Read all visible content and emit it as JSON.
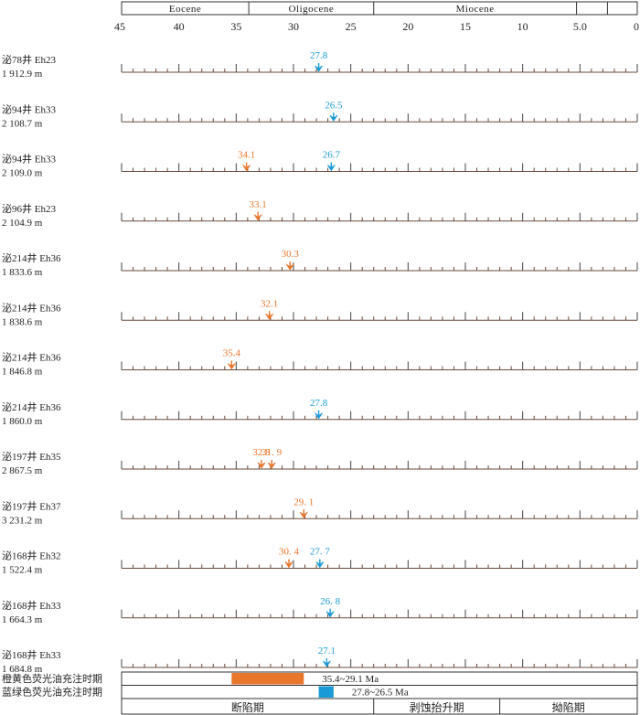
{
  "epochs": [
    {
      "name": "Eocene",
      "from": 45,
      "to": 33.9
    },
    {
      "name": "Oligocene",
      "from": 33.9,
      "to": 23.0
    },
    {
      "name": "Miocene",
      "from": 23.0,
      "to": 5.3
    },
    {
      "name": "",
      "from": 5.3,
      "to": 2.6
    },
    {
      "name": "",
      "from": 2.6,
      "to": 0
    }
  ],
  "axis": {
    "min": 0,
    "max": 45,
    "reversed": true,
    "ticks": [
      {
        "value": 45,
        "label": "45"
      },
      {
        "value": 40,
        "label": "40"
      },
      {
        "value": 35,
        "label": "35"
      },
      {
        "value": 30,
        "label": "30"
      },
      {
        "value": 25,
        "label": "25"
      },
      {
        "value": 20,
        "label": "20"
      },
      {
        "value": 15,
        "label": "15"
      },
      {
        "value": 10,
        "label": "10"
      },
      {
        "value": 5,
        "label": "5.0"
      },
      {
        "value": 0,
        "label": "0"
      }
    ]
  },
  "colors": {
    "orange": "#e8762b",
    "blue": "#1a9ad6",
    "line": "#6b4a3a",
    "frame": "#333333"
  },
  "samples": [
    {
      "well": "泌78井",
      "layer": "Eh23",
      "depth": "1 912.9 m",
      "markers": [
        {
          "age": 27.8,
          "label": "27.8",
          "color": "blue"
        }
      ]
    },
    {
      "well": "泌94井",
      "layer": "Eh33",
      "depth": "2 108.7 m",
      "markers": [
        {
          "age": 26.5,
          "label": "26.5",
          "color": "blue"
        }
      ]
    },
    {
      "well": "泌94井",
      "layer": "Eh33",
      "depth": "2 109.0 m",
      "markers": [
        {
          "age": 34.1,
          "label": "34.1",
          "color": "orange"
        },
        {
          "age": 26.7,
          "label": "26.7",
          "color": "blue"
        }
      ]
    },
    {
      "well": "泌96井",
      "layer": "Eh23",
      "depth": "2 104.9 m",
      "markers": [
        {
          "age": 33.1,
          "label": "33.1",
          "color": "orange"
        }
      ]
    },
    {
      "well": "泌214井",
      "layer": "Eh36",
      "depth": "1 833.6 m",
      "markers": [
        {
          "age": 30.3,
          "label": "30.3",
          "color": "orange"
        }
      ]
    },
    {
      "well": "泌214井",
      "layer": "Eh36",
      "depth": "1 838.6 m",
      "markers": [
        {
          "age": 32.1,
          "label": "32.1",
          "color": "orange"
        }
      ]
    },
    {
      "well": "泌214井",
      "layer": "Eh36",
      "depth": "1 846.8 m",
      "markers": [
        {
          "age": 35.4,
          "label": "35.4",
          "color": "orange"
        }
      ]
    },
    {
      "well": "泌214井",
      "layer": "Eh36",
      "depth": "1 860.0 m",
      "markers": [
        {
          "age": 27.8,
          "label": "27.8",
          "color": "blue"
        }
      ]
    },
    {
      "well": "泌197井",
      "layer": "Eh35",
      "depth": "2 867.5 m",
      "markers": [
        {
          "age": 32.8,
          "label": "32.8",
          "color": "orange"
        },
        {
          "age": 31.9,
          "label": "31. 9",
          "color": "orange"
        }
      ]
    },
    {
      "well": "泌197井",
      "layer": "Eh37",
      "depth": "3 231.2 m",
      "markers": [
        {
          "age": 29.1,
          "label": "29. 1",
          "color": "orange"
        }
      ]
    },
    {
      "well": "泌168井",
      "layer": "Eh32",
      "depth": "1 522.4 m",
      "markers": [
        {
          "age": 30.4,
          "label": "30. 4",
          "color": "orange"
        },
        {
          "age": 27.7,
          "label": "27. 7",
          "color": "blue"
        }
      ]
    },
    {
      "well": "泌168井",
      "layer": "Eh33",
      "depth": "1 664.3 m",
      "markers": [
        {
          "age": 26.8,
          "label": "26. 8",
          "color": "blue"
        }
      ]
    },
    {
      "well": "泌168井",
      "layer": "Eh33",
      "depth": "1 684.8 m",
      "markers": [
        {
          "age": 27.1,
          "label": "27.1",
          "color": "blue"
        }
      ]
    }
  ],
  "periods": [
    {
      "label": "橙黄色荧光油充注时期",
      "from": 35.4,
      "to": 29.1,
      "color": "orange",
      "range_label": "35.4~29.1 Ma"
    },
    {
      "label": "蓝绿色荧光油充注时期",
      "from": 27.8,
      "to": 26.5,
      "color": "blue",
      "range_label": "27.8~26.5 Ma"
    }
  ],
  "stages": [
    {
      "label": "断陷期",
      "from": 45,
      "to": 23.0
    },
    {
      "label": "剥蚀抬升期",
      "from": 23.0,
      "to": 12.0
    },
    {
      "label": "拗陷期",
      "from": 12.0,
      "to": 0
    }
  ]
}
